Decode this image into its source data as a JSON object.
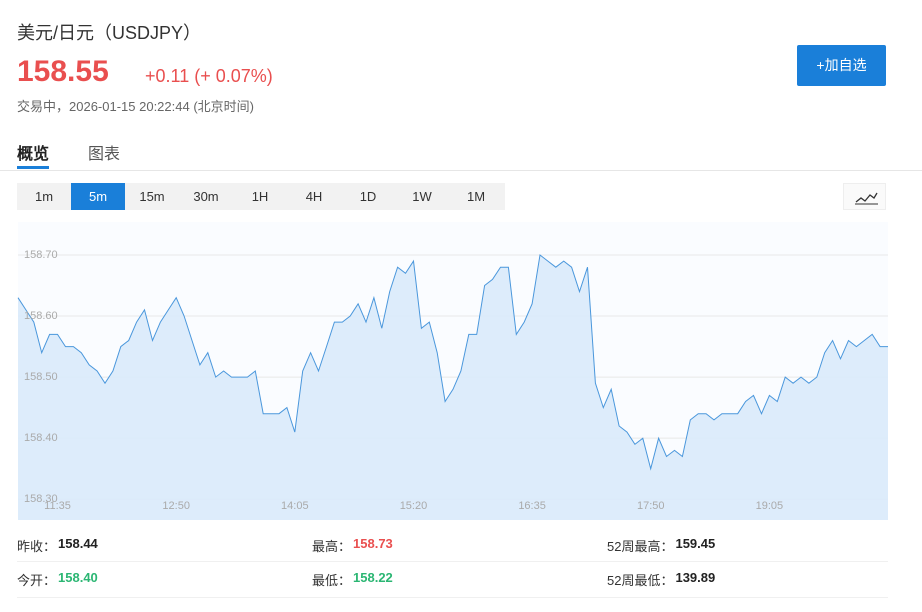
{
  "header": {
    "title": "美元/日元（USDJPY）",
    "price": "158.55",
    "change": "+0.11 (+ 0.07%)",
    "status": "交易中，2026-01-15 20:22:44 (北京时间)",
    "button": "+加自选"
  },
  "tabs": [
    "概览",
    "图表"
  ],
  "intervals": [
    "1m",
    "5m",
    "15m",
    "30m",
    "1H",
    "4H",
    "1D",
    "1W",
    "1M"
  ],
  "active_interval": 1,
  "chart_data": {
    "type": "line",
    "categories": [
      null,
      null,
      null,
      null,
      null,
      "11:35",
      null,
      null,
      null,
      null,
      null,
      null,
      null,
      null,
      null,
      null,
      null,
      null,
      null,
      null,
      "12:50",
      null,
      null,
      null,
      null,
      null,
      null,
      null,
      null,
      null,
      null,
      null,
      null,
      null,
      null,
      "14:05",
      null,
      null,
      null,
      null,
      null,
      null,
      null,
      null,
      null,
      null,
      null,
      null,
      null,
      null,
      "15:20",
      null,
      null,
      null,
      null,
      null,
      null,
      null,
      null,
      null,
      null,
      null,
      null,
      null,
      null,
      "16:35",
      null,
      null,
      null,
      null,
      null,
      null,
      null,
      null,
      null,
      null,
      null,
      null,
      null,
      null,
      "17:50",
      null,
      null,
      null,
      null,
      null,
      null,
      null,
      null,
      null,
      null,
      null,
      null,
      null,
      null,
      "19:05",
      null,
      null,
      null,
      null,
      null,
      null,
      null,
      null,
      null,
      null,
      null,
      null,
      null,
      null,
      null
    ],
    "series": [
      {
        "color": "#4a97dc",
        "values": [
          158.63,
          158.61,
          158.59,
          158.54,
          158.57,
          158.57,
          158.55,
          158.55,
          158.54,
          158.52,
          158.51,
          158.49,
          158.51,
          158.55,
          158.56,
          158.59,
          158.61,
          158.56,
          158.59,
          158.61,
          158.63,
          158.6,
          158.56,
          158.52,
          158.54,
          158.5,
          158.51,
          158.5,
          158.5,
          158.5,
          158.51,
          158.44,
          158.44,
          158.44,
          158.45,
          158.41,
          158.51,
          158.54,
          158.51,
          158.55,
          158.59,
          158.59,
          158.6,
          158.62,
          158.59,
          158.63,
          158.58,
          158.64,
          158.68,
          158.67,
          158.69,
          158.58,
          158.59,
          158.54,
          158.46,
          158.48,
          158.51,
          158.57,
          158.57,
          158.65,
          158.66,
          158.68,
          158.68,
          158.57,
          158.59,
          158.62,
          158.7,
          158.69,
          158.68,
          158.69,
          158.68,
          158.64,
          158.68,
          158.49,
          158.45,
          158.48,
          158.42,
          158.41,
          158.39,
          158.4,
          158.35,
          158.4,
          158.37,
          158.38,
          158.37,
          158.43,
          158.44,
          158.44,
          158.43,
          158.44,
          158.44,
          158.44,
          158.46,
          158.47,
          158.44,
          158.47,
          158.46,
          158.5,
          158.49,
          158.5,
          158.49,
          158.5,
          158.54,
          158.56,
          158.53,
          158.56,
          158.55,
          158.56,
          158.57,
          158.55,
          158.55
        ]
      }
    ],
    "ylim": [
      158.266,
      158.754
    ],
    "yticks": [
      {
        "value": 158.3,
        "label": "158.30"
      },
      {
        "value": 158.4,
        "label": "158.40"
      },
      {
        "value": 158.5,
        "label": "158.50"
      },
      {
        "value": 158.6,
        "label": "158.60"
      },
      {
        "value": 158.7,
        "label": "158.70"
      }
    ],
    "grid": true
  },
  "stats": [
    [
      "昨收：",
      "158.44"
    ],
    [
      "最高：",
      "158.73"
    ],
    [
      "52周最高：",
      "159.45"
    ],
    [
      "今开：",
      "158.40"
    ],
    [
      "最低：",
      "158.22"
    ],
    [
      "52周最低：",
      "139.89"
    ]
  ]
}
